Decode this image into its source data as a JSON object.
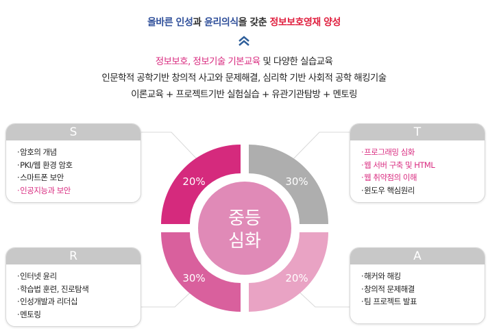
{
  "headline": {
    "part1": "올바른 인성",
    "part2": "과 ",
    "part3": "윤리의식",
    "part4": "을 갖춘 ",
    "part5": "정보보호영재 양성"
  },
  "icons": {
    "chevron": "double-chevron-up-icon"
  },
  "intro": {
    "line1_highlight": "정보보호, 정보기술 기본교육",
    "line1_rest": " 및 다양한 실습교육",
    "line2": "인문학적 공학기반 창의적 사고와 문제해결, 심리학 기반 사회적 공학 해킹기술",
    "line3": "이론교육 + 프로젝트기반 실험실습 + 유관기관탐방 + 멘토링"
  },
  "center": {
    "line1": "중등",
    "line2": "심화"
  },
  "colors": {
    "S": "#d52a7d",
    "T": "#aeaeae",
    "R": "#d9609d",
    "A": "#e9a3c4",
    "center": "#e08ab7",
    "highlight": "#d92c80",
    "title_blue": "#2f4f9a",
    "title_red": "#e0203f"
  },
  "quadrants": [
    {
      "key": "S",
      "percent": "20%",
      "items": [
        {
          "text": "암호의 개념",
          "hl": false
        },
        {
          "text": "PKI/웹 환경 암호",
          "hl": false
        },
        {
          "text": "스마트폰 보안",
          "hl": false
        },
        {
          "text": "인공지능과 보안",
          "hl": true
        }
      ]
    },
    {
      "key": "T",
      "percent": "30%",
      "items": [
        {
          "text": "프로그래밍 심화",
          "hl": true
        },
        {
          "text": "웹 서버 구축 및 HTML",
          "hl": true
        },
        {
          "text": "웹 취약점의 이해",
          "hl": true
        },
        {
          "text": "윈도우 핵심원리",
          "hl": false
        }
      ]
    },
    {
      "key": "R",
      "percent": "30%",
      "items": [
        {
          "text": "인터넷 윤리",
          "hl": false
        },
        {
          "text": "학습법 훈련, 진로탐색",
          "hl": false
        },
        {
          "text": "인성개발과 리더십",
          "hl": false
        },
        {
          "text": "멘토링",
          "hl": false
        }
      ]
    },
    {
      "key": "A",
      "percent": "20%",
      "items": [
        {
          "text": "해커와 해킹",
          "hl": false
        },
        {
          "text": "창의적 문제해결",
          "hl": false
        },
        {
          "text": "팀 프로젝트 발표",
          "hl": false
        }
      ]
    }
  ]
}
